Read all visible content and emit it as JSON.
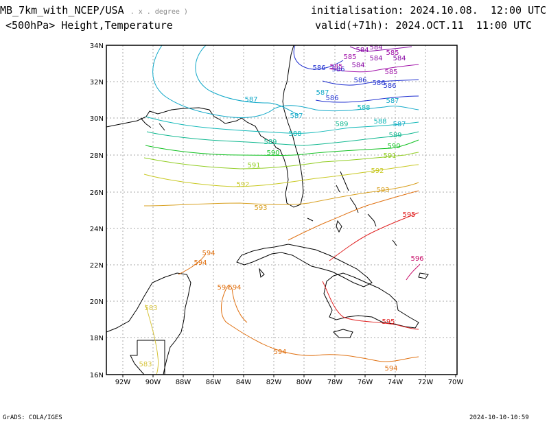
{
  "header": {
    "model": "MB_7km_with_NCEP/USA",
    "model_suffix": ". x . degree )",
    "level_title": "<500hPa> Height,Temperature",
    "init_label": "initialisation:",
    "init_value": "2024.10.08.  12:00 UTC",
    "valid_label": "valid(+71h):",
    "valid_value": "2024.OCT.11  11:00 UTC"
  },
  "footer": {
    "credit": "GrADS: COLA/IGES",
    "timestamp": "2024-10-10-10:59"
  },
  "map": {
    "lon_labels": [
      "92W",
      "90W",
      "88W",
      "86W",
      "84W",
      "82W",
      "80W",
      "78W",
      "76W",
      "74W",
      "72W",
      "70W"
    ],
    "lat_labels": [
      "34N",
      "32N",
      "30N",
      "28N",
      "26N",
      "24N",
      "22N",
      "20N",
      "18N",
      "16N"
    ],
    "colors": {
      "c583": "#d6c33a",
      "c584": "#8a0aa6",
      "c585": "#a00fa8",
      "c586": "#2030d0",
      "c587": "#10a8c8",
      "c588": "#10b8b8",
      "c589": "#10b890",
      "c590": "#10c020",
      "c591": "#90cc20",
      "c592": "#c8c820",
      "c593": "#d8a020",
      "c594": "#e07010",
      "c595": "#e02020",
      "c596": "#c8106a",
      "coast": "#000000",
      "grid": "#aaaaaa"
    },
    "contour_labels": [
      {
        "text": "584",
        "color": "c584"
      },
      {
        "text": "584",
        "color": "c584"
      },
      {
        "text": "585",
        "color": "c585"
      },
      {
        "text": "584",
        "color": "c584"
      },
      {
        "text": "584",
        "color": "c584"
      },
      {
        "text": "585",
        "color": "c585"
      },
      {
        "text": "584",
        "color": "c584"
      },
      {
        "text": "585",
        "color": "c585"
      },
      {
        "text": "586",
        "color": "c586"
      },
      {
        "text": "586",
        "color": "c586"
      },
      {
        "text": "585",
        "color": "c585"
      },
      {
        "text": "586",
        "color": "c586"
      },
      {
        "text": "586",
        "color": "c586"
      },
      {
        "text": "586",
        "color": "c586"
      },
      {
        "text": "587",
        "color": "c587"
      },
      {
        "text": "587",
        "color": "c587"
      },
      {
        "text": "586",
        "color": "c586"
      },
      {
        "text": "587",
        "color": "c587"
      },
      {
        "text": "587",
        "color": "c587"
      },
      {
        "text": "588",
        "color": "c588"
      },
      {
        "text": "587",
        "color": "c587"
      },
      {
        "text": "589",
        "color": "c589"
      },
      {
        "text": "588",
        "color": "c588"
      },
      {
        "text": "588",
        "color": "c588"
      },
      {
        "text": "589",
        "color": "c589"
      },
      {
        "text": "589",
        "color": "c589"
      },
      {
        "text": "590",
        "color": "c590"
      },
      {
        "text": "590",
        "color": "c590"
      },
      {
        "text": "591",
        "color": "c591"
      },
      {
        "text": "591",
        "color": "c591"
      },
      {
        "text": "592",
        "color": "c592"
      },
      {
        "text": "592",
        "color": "c592"
      },
      {
        "text": "593",
        "color": "c593"
      },
      {
        "text": "593",
        "color": "c593"
      },
      {
        "text": "595",
        "color": "c595"
      },
      {
        "text": "594",
        "color": "c594"
      },
      {
        "text": "594",
        "color": "c594"
      },
      {
        "text": "596",
        "color": "c596"
      },
      {
        "text": "594",
        "color": "c594"
      },
      {
        "text": "594",
        "color": "c594"
      },
      {
        "text": "583",
        "color": "c583"
      },
      {
        "text": "595",
        "color": "c595"
      },
      {
        "text": "594",
        "color": "c594"
      },
      {
        "text": "594",
        "color": "c594"
      },
      {
        "text": "583",
        "color": "c583"
      }
    ]
  }
}
